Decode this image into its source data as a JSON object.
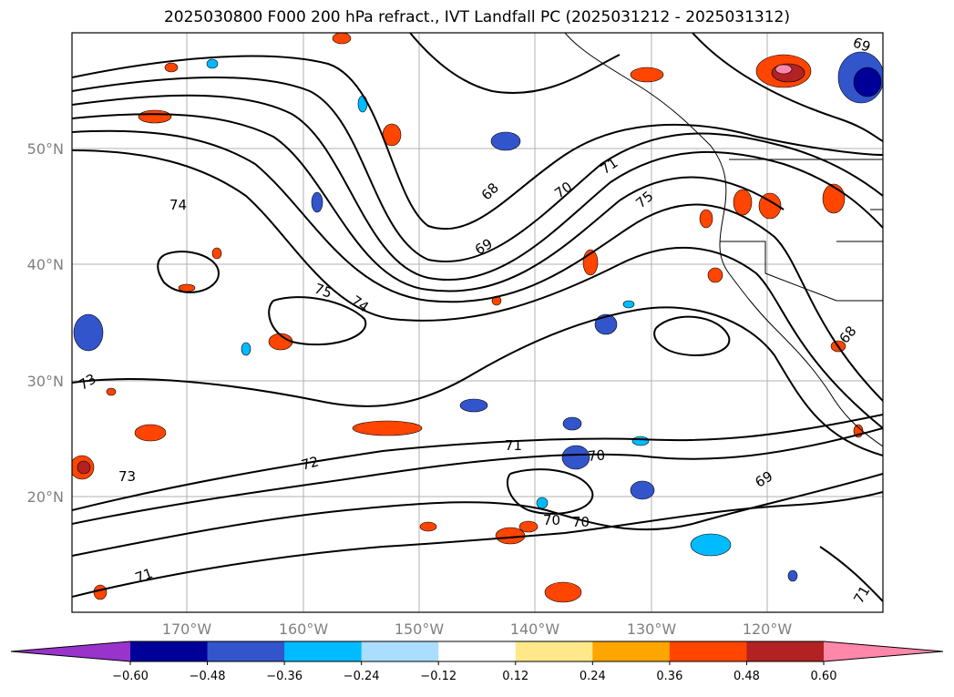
{
  "title": "2025030800 F000 200 hPa refract., IVT Landfall PC (2025031212 - 2025031312)",
  "map": {
    "lat_labels": [
      "50°N",
      "40°N",
      "30°N",
      "20°N"
    ],
    "lon_labels": [
      "170°W",
      "160°W",
      "150°W",
      "140°W",
      "130°W",
      "120°W"
    ],
    "contour_labels": [
      "68",
      "69",
      "70",
      "71",
      "75",
      "74",
      "75",
      "74",
      "73",
      "73",
      "72",
      "71",
      "70",
      "69",
      "71",
      "70",
      "70",
      "71",
      "68",
      "69"
    ],
    "gridline_color": "#b0b0b0",
    "contour_color": "#000000"
  },
  "colorbar": {
    "colors": [
      "#9933cc",
      "#000099",
      "#3355cc",
      "#00bbff",
      "#aaddff",
      "#ffffff",
      "#ffe88a",
      "#ffa500",
      "#ff4500",
      "#b22222",
      "#ff88aa"
    ],
    "tick_labels": [
      "−0.60",
      "−0.48",
      "−0.36",
      "−0.24",
      "−0.12",
      "0.12",
      "0.24",
      "0.36",
      "0.48",
      "0.60"
    ]
  }
}
